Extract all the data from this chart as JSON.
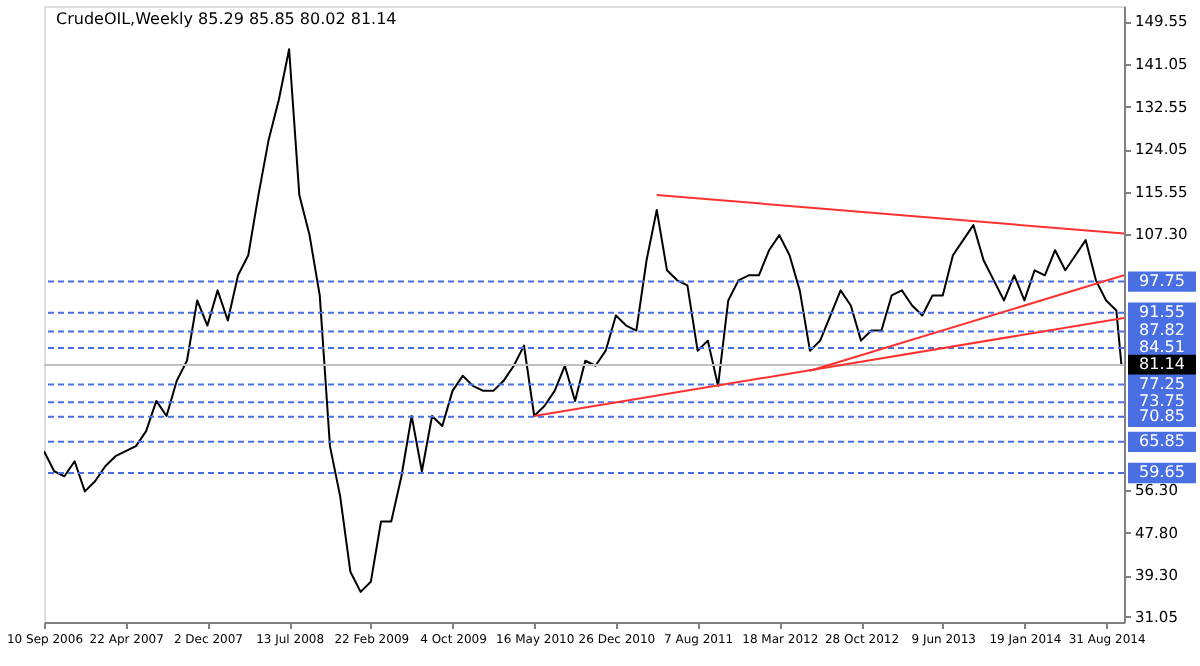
{
  "chart_data": {
    "type": "line",
    "title": "CrudeOIL,Weekly  85.29 85.85 80.02 81.14",
    "xlim": [
      "2006-09-10",
      "2014-10-19"
    ],
    "xticks": [
      {
        "value": "2006-09-10",
        "label": "10 Sep 2006"
      },
      {
        "value": "2007-04-22",
        "label": "22 Apr 2007"
      },
      {
        "value": "2007-12-02",
        "label": "2 Dec 2007"
      },
      {
        "value": "2008-07-13",
        "label": "13 Jul 2008"
      },
      {
        "value": "2009-02-22",
        "label": "22 Feb 2009"
      },
      {
        "value": "2009-10-04",
        "label": "4 Oct 2009"
      },
      {
        "value": "2010-05-16",
        "label": "16 May 2010"
      },
      {
        "value": "2010-12-26",
        "label": "26 Dec 2010"
      },
      {
        "value": "2011-08-07",
        "label": "7 Aug 2011"
      },
      {
        "value": "2012-03-18",
        "label": "18 Mar 2012"
      },
      {
        "value": "2012-10-28",
        "label": "28 Oct 2012"
      },
      {
        "value": "2013-06-09",
        "label": "9 Jun 2013"
      },
      {
        "value": "2014-01-19",
        "label": "19 Jan 2014"
      },
      {
        "value": "2014-08-31",
        "label": "31 Aug 2014"
      }
    ],
    "ylim": [
      30,
      152.6
    ],
    "yticks": [
      149.55,
      141.05,
      132.55,
      124.05,
      115.55,
      {
        "value": 107.3,
        "label": "107.30"
      },
      {
        "value": 56.3,
        "label": "56.30"
      },
      {
        "value": 47.8,
        "label": "47.80"
      },
      {
        "value": 39.3,
        "label": "39.30"
      },
      31.05
    ],
    "grid": false,
    "series": [
      {
        "type": "line",
        "color": "#000000",
        "x": [
          "2006-09-10",
          "2006-10-08",
          "2006-11-05",
          "2006-12-03",
          "2006-12-31",
          "2007-01-28",
          "2007-02-25",
          "2007-03-25",
          "2007-04-22",
          "2007-05-20",
          "2007-06-17",
          "2007-07-15",
          "2007-08-12",
          "2007-09-09",
          "2007-10-07",
          "2007-11-04",
          "2007-12-02",
          "2007-12-30",
          "2008-01-27",
          "2008-02-24",
          "2008-03-23",
          "2008-04-20",
          "2008-05-18",
          "2008-06-15",
          "2008-07-13",
          "2008-08-10",
          "2008-09-07",
          "2008-10-05",
          "2008-11-02",
          "2008-11-30",
          "2008-12-28",
          "2009-01-25",
          "2009-02-22",
          "2009-03-22",
          "2009-04-19",
          "2009-05-17",
          "2009-06-14",
          "2009-07-12",
          "2009-08-09",
          "2009-09-06",
          "2009-10-04",
          "2009-11-01",
          "2009-11-29",
          "2009-12-27",
          "2010-01-24",
          "2010-02-21",
          "2010-03-21",
          "2010-04-18",
          "2010-05-16",
          "2010-06-13",
          "2010-07-11",
          "2010-08-08",
          "2010-09-05",
          "2010-10-03",
          "2010-10-31",
          "2010-11-28",
          "2010-12-26",
          "2011-01-23",
          "2011-02-20",
          "2011-03-20",
          "2011-04-17",
          "2011-05-15",
          "2011-06-12",
          "2011-07-10",
          "2011-08-07",
          "2011-09-04",
          "2011-10-02",
          "2011-10-30",
          "2011-11-27",
          "2011-12-25",
          "2012-01-22",
          "2012-02-19",
          "2012-03-18",
          "2012-04-15",
          "2012-05-13",
          "2012-06-10",
          "2012-07-08",
          "2012-08-05",
          "2012-09-02",
          "2012-09-30",
          "2012-10-28",
          "2012-11-25",
          "2012-12-23",
          "2013-01-20",
          "2013-02-17",
          "2013-03-17",
          "2013-04-14",
          "2013-05-12",
          "2013-06-09",
          "2013-07-07",
          "2013-08-04",
          "2013-09-01",
          "2013-09-29",
          "2013-10-27",
          "2013-11-24",
          "2013-12-22",
          "2014-01-19",
          "2014-02-16",
          "2014-03-16",
          "2014-04-13",
          "2014-05-11",
          "2014-06-08",
          "2014-07-06",
          "2014-08-03",
          "2014-08-31",
          "2014-09-28",
          "2014-10-12"
        ],
        "values": [
          64,
          60,
          59,
          62,
          56,
          58,
          61,
          63,
          64,
          65,
          68,
          74,
          71,
          78,
          82,
          94,
          89,
          96,
          90,
          99,
          103,
          115,
          126,
          134,
          144,
          115,
          107,
          95,
          65,
          55,
          40,
          36,
          38,
          50,
          50,
          59,
          71,
          60,
          71,
          69,
          76,
          79,
          77,
          76,
          76,
          78,
          81,
          85,
          71,
          73,
          76,
          81,
          74,
          82,
          81,
          84,
          91,
          89,
          88,
          102,
          112,
          100,
          98,
          97,
          84,
          86,
          77,
          94,
          98,
          99,
          99,
          104,
          107,
          103,
          96,
          84,
          86,
          91,
          96,
          93,
          86,
          88,
          88,
          95,
          96,
          93,
          91,
          95,
          95,
          103,
          106,
          109,
          102,
          98,
          94,
          99,
          94,
          100,
          99,
          104,
          100,
          103,
          106,
          98,
          94,
          92,
          81.14
        ]
      },
      {
        "type": "line",
        "color": "#ff3030",
        "x": [
          "2011-04-17",
          "2014-10-19"
        ],
        "values": [
          115,
          107.3
        ]
      },
      {
        "type": "line",
        "color": "#ff3030",
        "x": [
          "2012-06-10",
          "2014-10-19"
        ],
        "values": [
          80,
          99
        ]
      },
      {
        "type": "line",
        "color": "#ff3030",
        "x": [
          "2010-05-16",
          "2014-10-19"
        ],
        "values": [
          71,
          90.5
        ]
      }
    ],
    "ref_lines": [
      {
        "axis": "y",
        "value": 97.75,
        "label": "97.75",
        "color": "#4a6fe3",
        "line_style": "dashed"
      },
      {
        "axis": "y",
        "value": 91.55,
        "label": "91.55",
        "color": "#4a6fe3",
        "line_style": "dashed"
      },
      {
        "axis": "y",
        "value": 87.82,
        "label": "87.82",
        "color": "#4a6fe3",
        "line_style": "dashed"
      },
      {
        "axis": "y",
        "value": 84.51,
        "label": "84.51",
        "color": "#4a6fe3",
        "line_style": "dashed"
      },
      {
        "axis": "y",
        "value": 81.14,
        "label": "81.14",
        "color": "#c0c0c0",
        "line_style": "solid"
      },
      {
        "axis": "y",
        "value": 77.25,
        "label": "77.25",
        "color": "#4a6fe3",
        "line_style": "dashed"
      },
      {
        "axis": "y",
        "value": 73.75,
        "label": "73.75",
        "color": "#4a6fe3",
        "line_style": "dashed"
      },
      {
        "axis": "y",
        "value": 70.85,
        "label": "70.85",
        "color": "#4a6fe3",
        "line_style": "dashed"
      },
      {
        "axis": "y",
        "value": 65.85,
        "label": "65.85",
        "color": "#4a6fe3",
        "line_style": "dashed"
      },
      {
        "axis": "y",
        "value": 59.65,
        "label": "59.65",
        "color": "#4a6fe3",
        "line_style": "dashed"
      }
    ]
  }
}
